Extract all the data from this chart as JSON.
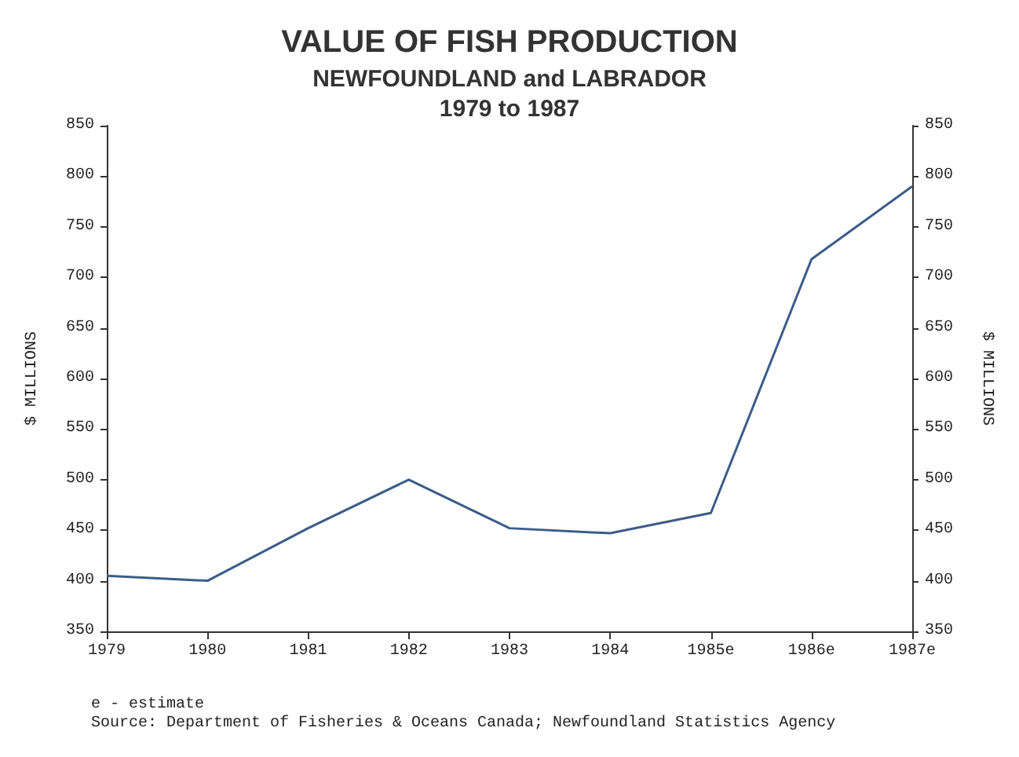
{
  "chart_data": {
    "type": "line",
    "title": "VALUE OF FISH PRODUCTION",
    "subtitle": "NEWFOUNDLAND and LABRADOR\n1979 to 1987",
    "ylabel": "$ MILLIONS",
    "y2label": "$ MILLIONS",
    "categories": [
      "1979",
      "1980",
      "1981",
      "1982",
      "1983",
      "1984",
      "1985e",
      "1986e",
      "1987e"
    ],
    "series": [
      {
        "color": "#3b5c88",
        "values": [
          405,
          400,
          452,
          500,
          452,
          447,
          467,
          718,
          790
        ]
      }
    ],
    "ylim": [
      350,
      850
    ],
    "yticks": [
      350,
      400,
      450,
      500,
      550,
      600,
      650,
      700,
      750,
      800,
      850
    ],
    "y2lim": [
      350,
      850
    ],
    "y2ticks": [
      350,
      400,
      450,
      500,
      550,
      600,
      650,
      700,
      750,
      800,
      850
    ],
    "grid": false,
    "marker": "none",
    "line_style": "solid",
    "annotations": [
      "e - estimate",
      "Source: Department of Fisheries & Oceans Canada; Newfoundland Statistics Agency"
    ]
  }
}
